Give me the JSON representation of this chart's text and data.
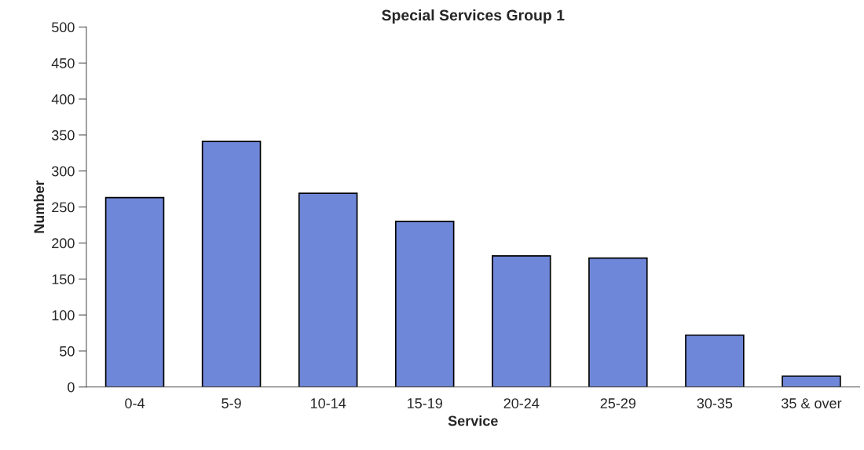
{
  "chart_data": {
    "type": "bar",
    "title": "Special Services Group 1",
    "xlabel": "Service",
    "ylabel": "Number",
    "categories": [
      "0-4",
      "5-9",
      "10-14",
      "15-19",
      "20-24",
      "25-29",
      "30-35",
      "35 & over"
    ],
    "values": [
      263,
      341,
      269,
      230,
      182,
      179,
      72,
      15
    ],
    "color": "#6f87d8",
    "ylim": [
      0,
      500
    ],
    "yticks": [
      0,
      50,
      100,
      150,
      200,
      250,
      300,
      350,
      400,
      450,
      500
    ],
    "grid": false
  }
}
